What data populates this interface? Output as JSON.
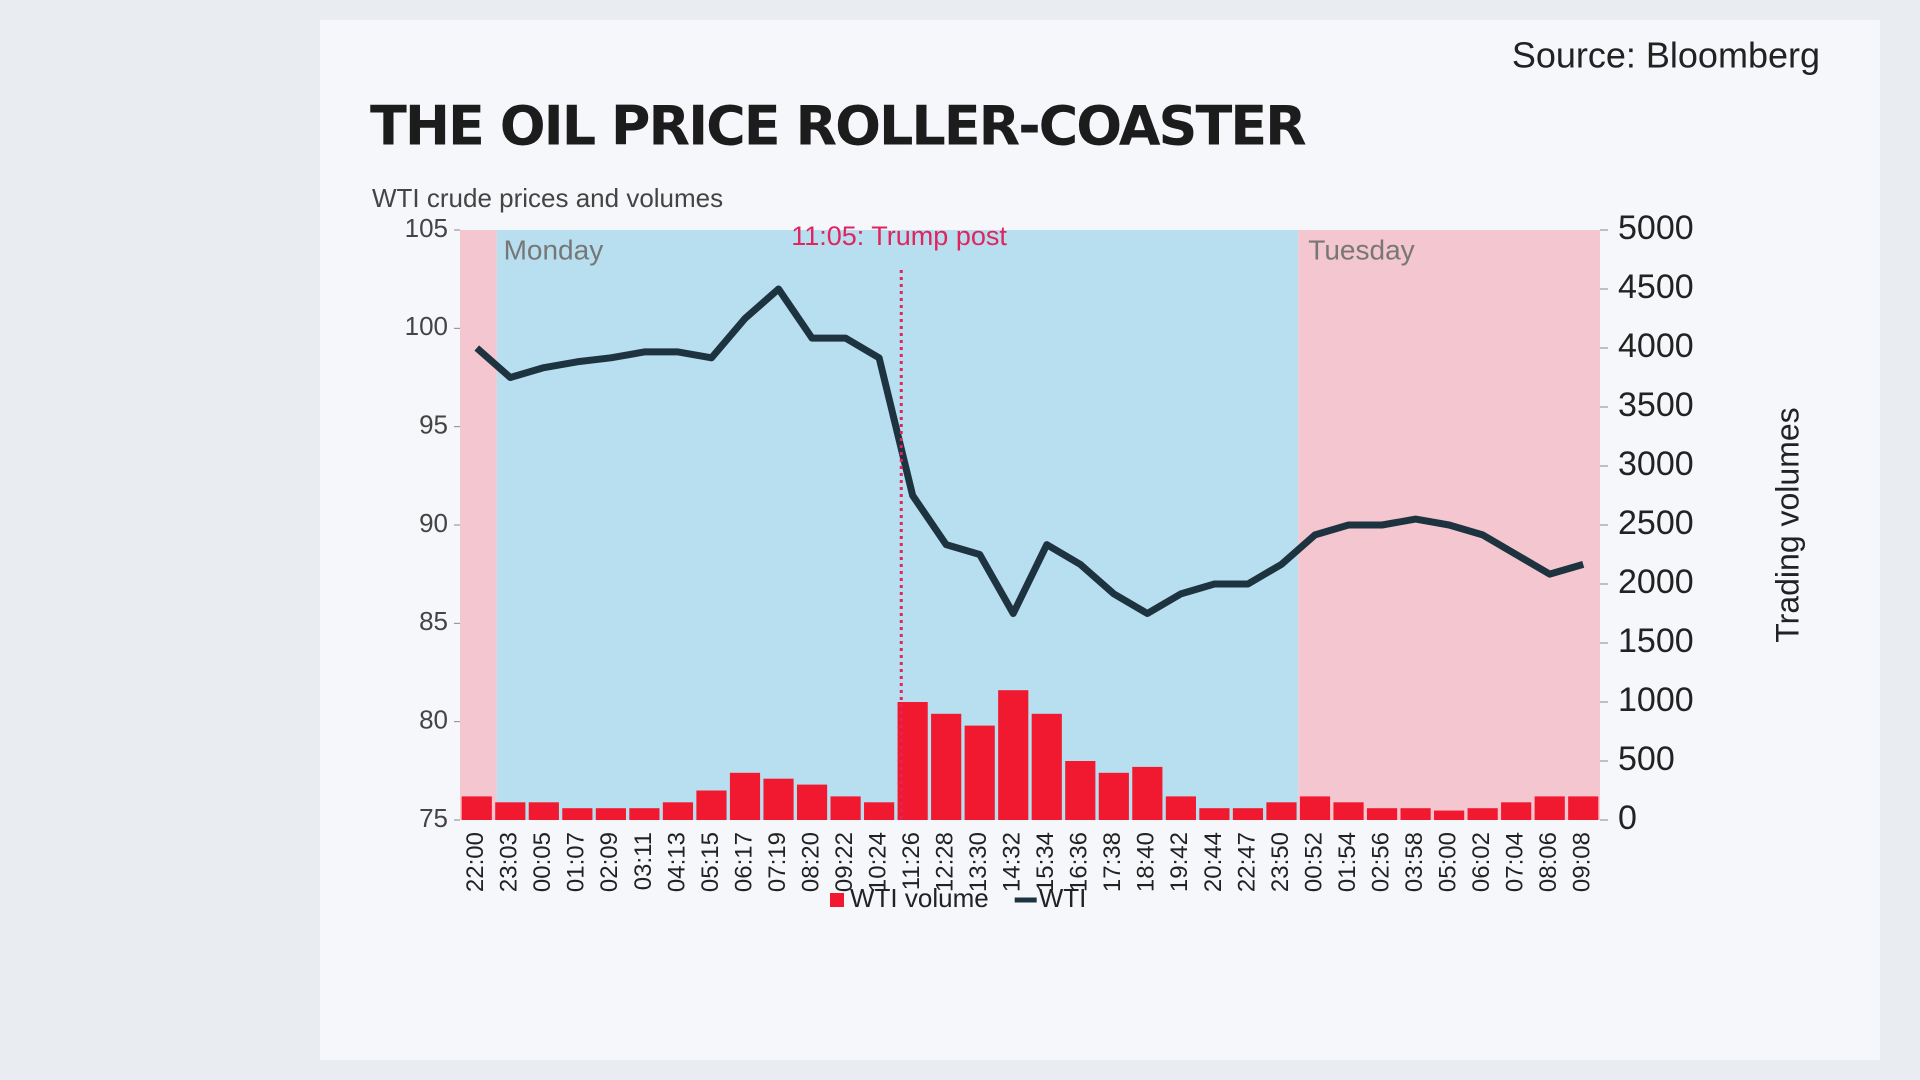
{
  "chart_data": {
    "type": "bar-line",
    "title": "THE OIL PRICE ROLLER-COASTER",
    "subtitle": "WTI crude prices and volumes",
    "source": "Source: Bloomberg",
    "annotations": [
      "Monday",
      "Tuesday",
      "11:05: Trump post"
    ],
    "y2_label": "Trading volumes",
    "categories": [
      "22:00",
      "23:03",
      "00:05",
      "01:07",
      "02:09",
      "03:11",
      "04:13",
      "05:15",
      "06:17",
      "07:19",
      "08:20",
      "09:22",
      "10:24",
      "11:26",
      "12:28",
      "13:30",
      "14:32",
      "15:34",
      "16:36",
      "17:38",
      "18:40",
      "19:42",
      "20:44",
      "22:47",
      "23:50",
      "00:52",
      "01:54",
      "02:56",
      "03:58",
      "05:00",
      "06:02",
      "07:04",
      "08:06",
      "09:08"
    ],
    "series": [
      {
        "name": "WTI volume",
        "type": "bar",
        "axis": "y2",
        "color": "#f0192f",
        "values": [
          200,
          150,
          150,
          100,
          100,
          100,
          150,
          250,
          400,
          350,
          300,
          200,
          150,
          1000,
          900,
          800,
          1100,
          900,
          500,
          400,
          450,
          200,
          100,
          100,
          150,
          200,
          150,
          100,
          100,
          80,
          100,
          150,
          200,
          200
        ]
      },
      {
        "name": "WTI",
        "type": "line",
        "axis": "y",
        "color": "#1e3340",
        "values": [
          99,
          97.5,
          98,
          98.3,
          98.5,
          98.8,
          98.8,
          98.5,
          100.5,
          102,
          99.5,
          99.5,
          98.5,
          91.5,
          89,
          88.5,
          85.5,
          89,
          88,
          86.5,
          85.5,
          86.5,
          87,
          87,
          88,
          89.5,
          90,
          90,
          90.3,
          90,
          89.5,
          88.5,
          87.5,
          88
        ]
      }
    ],
    "ylim": [
      75,
      105
    ],
    "yticks": [
      75,
      80,
      85,
      90,
      95,
      100,
      105
    ],
    "y2lim": [
      0,
      5000
    ],
    "y2ticks": [
      0,
      500,
      1000,
      1500,
      2000,
      2500,
      3000,
      3500,
      4000,
      4500,
      5000
    ]
  }
}
